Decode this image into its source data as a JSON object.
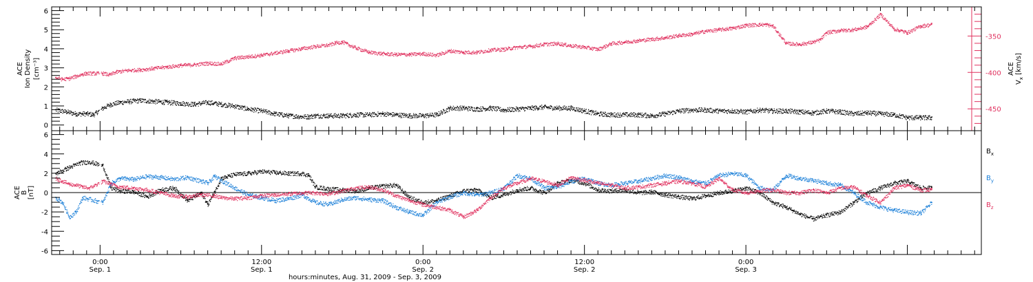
{
  "chart_data": [
    {
      "type": "scatter",
      "panel": "top",
      "left_axis": {
        "label_lines": [
          "ACE",
          "Ion Density"
        ],
        "unit": "[cm⁻³]",
        "ylim": [
          -0.3,
          6.2
        ],
        "ticks": [
          0,
          1,
          2,
          3,
          4,
          5,
          6
        ],
        "tick_labels": [
          "0",
          "1",
          "2",
          "3",
          "4",
          "5",
          "6"
        ]
      },
      "right_axis": {
        "label_top": "ACE",
        "label_var": "V",
        "label_sub": "x",
        "label_unit": "[km/s]",
        "ylim": [
          -480,
          -310
        ],
        "ticks": [
          -350,
          -400,
          -450
        ],
        "tick_labels": [
          "-350",
          "-400",
          "-450"
        ],
        "color": "#e0305e"
      },
      "grid": false,
      "series": [
        {
          "color": "#000000",
          "axis": "left",
          "x": [
            -3.3,
            -2.5,
            -1.8,
            -1.0,
            -0.5,
            0.2,
            0.8,
            1.5,
            2.2,
            3.0,
            4.0,
            5.0,
            6.0,
            7.0,
            8.0,
            9.0,
            10.0,
            11.0,
            12.0,
            13.0,
            14.0,
            15.0,
            15.5,
            16.0,
            17.0,
            18.0,
            19.0,
            20.0,
            21.0,
            22.0,
            23.0,
            24.0,
            25.0,
            26.0,
            27.0,
            28.0,
            29.0,
            30.0,
            31.0,
            32.0,
            33.0,
            34.0,
            35.0,
            36.0,
            37.0,
            38.0,
            39.0,
            40.0,
            41.0,
            42.0,
            43.0,
            44.0,
            45.0,
            46.0,
            47.0,
            48.0,
            49.0,
            50.0,
            51.0,
            52.0,
            53.0,
            54.0,
            55.0,
            56.0,
            57.0,
            58.0,
            59.0,
            60.0,
            61.0,
            61.8
          ],
          "y": [
            0.8,
            0.7,
            0.6,
            0.6,
            0.55,
            0.9,
            1.1,
            1.2,
            1.25,
            1.3,
            1.25,
            1.2,
            1.15,
            1.1,
            1.2,
            1.1,
            1.0,
            0.85,
            0.75,
            0.6,
            0.5,
            0.45,
            0.45,
            0.5,
            0.5,
            0.5,
            0.55,
            0.55,
            0.6,
            0.55,
            0.5,
            0.5,
            0.55,
            0.9,
            0.9,
            0.85,
            0.9,
            0.8,
            0.85,
            0.9,
            0.95,
            0.9,
            0.9,
            0.75,
            0.6,
            0.55,
            0.55,
            0.55,
            0.5,
            0.6,
            0.75,
            0.8,
            0.8,
            0.75,
            0.75,
            0.7,
            0.8,
            0.75,
            0.75,
            0.7,
            0.65,
            0.75,
            0.7,
            0.6,
            0.65,
            0.6,
            0.55,
            0.4,
            0.4,
            0.4
          ]
        },
        {
          "color": "#e0305e",
          "axis": "right",
          "x": [
            -3.3,
            -2.8,
            -2.3,
            -1.8,
            -1.3,
            -1.0,
            -0.6,
            0.2,
            0.7,
            1.2,
            2.0,
            3.0,
            4.0,
            5.0,
            6.0,
            7.0,
            8.0,
            9.0,
            10.0,
            11.0,
            12.0,
            13.0,
            14.0,
            15.0,
            16.0,
            17.0,
            17.5,
            18.0,
            19.0,
            20.0,
            21.0,
            22.0,
            23.0,
            24.0,
            25.0,
            26.0,
            27.0,
            28.0,
            29.0,
            30.0,
            31.0,
            32.0,
            33.0,
            34.0,
            35.0,
            36.0,
            37.0,
            38.0,
            39.0,
            40.0,
            41.0,
            42.0,
            43.0,
            44.0,
            45.0,
            46.0,
            47.0,
            48.0,
            49.0,
            49.5,
            50.0,
            51.0,
            52.0,
            53.0,
            53.5,
            54.0,
            55.0,
            56.0,
            57.0,
            58.0,
            59.0,
            60.0,
            61.0,
            61.8
          ],
          "y": [
            -407,
            -409,
            -408,
            -405,
            -402,
            -401,
            -401,
            -401,
            -403,
            -399,
            -397,
            -396,
            -394,
            -392,
            -390,
            -389,
            -387,
            -388,
            -380,
            -378,
            -376,
            -373,
            -370,
            -367,
            -364,
            -362,
            -359,
            -358,
            -366,
            -372,
            -374,
            -375,
            -375,
            -374,
            -376,
            -370,
            -372,
            -372,
            -369,
            -368,
            -365,
            -364,
            -361,
            -360,
            -363,
            -365,
            -368,
            -360,
            -358,
            -356,
            -354,
            -352,
            -349,
            -347,
            -343,
            -341,
            -339,
            -335,
            -334,
            -334,
            -336,
            -360,
            -361,
            -358,
            -355,
            -345,
            -342,
            -341,
            -337,
            -320,
            -340,
            -345,
            -336,
            -334
          ]
        }
      ]
    },
    {
      "type": "scatter",
      "panel": "bottom",
      "left_axis": {
        "label_lines": [
          "ACE",
          "B"
        ],
        "unit": "[nT]",
        "ylim": [
          -6.4,
          6.4
        ],
        "ticks": [
          -6,
          -4,
          -2,
          0,
          2,
          4,
          6
        ],
        "tick_labels": [
          "-6",
          "-4",
          "-2",
          "0",
          "2",
          "4",
          "6"
        ]
      },
      "legend": [
        {
          "var": "B",
          "sub": "x",
          "color": "#000000"
        },
        {
          "var": "B",
          "sub": "y",
          "color": "#1a7fd8"
        },
        {
          "var": "B",
          "sub": "z",
          "color": "#e0305e"
        }
      ],
      "zero_line": true,
      "grid": false,
      "series": [
        {
          "color": "#000000",
          "x": [
            -3.3,
            -2.5,
            -1.5,
            -0.8,
            0.2,
            0.8,
            1.5,
            2.5,
            3.5,
            4.5,
            5.5,
            6.5,
            7.5,
            8.0,
            8.5,
            9.0,
            10.0,
            11.0,
            12.0,
            13.0,
            14.0,
            15.0,
            15.5,
            16.0,
            17.0,
            18.0,
            19.0,
            20.0,
            21.0,
            22.0,
            23.0,
            24.0,
            25.0,
            26.0,
            27.0,
            28.0,
            29.0,
            30.0,
            31.0,
            32.0,
            33.0,
            34.0,
            35.0,
            36.0,
            37.0,
            38.0,
            39.0,
            40.0,
            41.0,
            42.0,
            43.0,
            44.0,
            45.0,
            46.0,
            47.0,
            48.0,
            49.0,
            50.0,
            51.0,
            52.0,
            53.0,
            54.0,
            55.0,
            56.0,
            57.0,
            58.0,
            59.0,
            60.0,
            61.0,
            61.8
          ],
          "y": [
            2.0,
            2.5,
            3.1,
            3.2,
            2.8,
            0.5,
            0.2,
            0.1,
            -0.4,
            0.3,
            0.5,
            -0.8,
            0.0,
            -1.2,
            0.1,
            1.5,
            1.9,
            2.0,
            2.2,
            2.1,
            2.0,
            2.0,
            1.8,
            0.6,
            0.4,
            0.3,
            0.2,
            0.5,
            0.7,
            0.8,
            -0.5,
            -1.0,
            -0.8,
            -0.3,
            0.2,
            0.3,
            -0.5,
            -0.2,
            0.3,
            0.5,
            0.0,
            1.0,
            1.3,
            1.0,
            0.3,
            0.2,
            0.3,
            0.0,
            0.1,
            -0.2,
            -0.4,
            -0.6,
            -0.3,
            0.0,
            0.2,
            0.5,
            0.0,
            -1.0,
            -1.5,
            -2.2,
            -2.7,
            -2.3,
            -2.0,
            -1.0,
            0.0,
            0.5,
            1.0,
            1.2,
            0.5,
            0.5
          ]
        },
        {
          "color": "#1a7fd8",
          "x": [
            -3.3,
            -2.8,
            -2.3,
            -1.8,
            -1.3,
            0.2,
            0.8,
            1.5,
            2.5,
            3.5,
            4.5,
            5.5,
            6.5,
            7.5,
            8.0,
            8.5,
            9.0,
            10.0,
            11.0,
            12.0,
            13.0,
            14.0,
            15.0,
            16.0,
            17.0,
            18.0,
            19.0,
            20.0,
            21.0,
            22.0,
            23.0,
            24.0,
            25.0,
            26.0,
            27.0,
            28.0,
            29.0,
            30.0,
            31.0,
            32.0,
            33.0,
            34.0,
            35.0,
            36.0,
            37.0,
            38.0,
            39.0,
            40.0,
            41.0,
            42.0,
            43.0,
            44.0,
            45.0,
            46.0,
            47.0,
            48.0,
            49.0,
            50.0,
            51.0,
            52.0,
            53.0,
            54.0,
            55.0,
            56.0,
            57.0,
            58.0,
            59.0,
            60.0,
            61.0,
            61.8
          ],
          "y": [
            -0.5,
            -1.0,
            -2.5,
            -2.0,
            -0.5,
            -1.0,
            1.0,
            1.5,
            1.4,
            1.7,
            1.6,
            1.4,
            1.6,
            1.2,
            1.0,
            1.7,
            1.3,
            0.5,
            -0.2,
            -0.5,
            -0.8,
            -0.6,
            -0.2,
            -1.0,
            -1.2,
            -0.7,
            -0.5,
            -0.7,
            -0.8,
            -1.5,
            -2.0,
            -2.3,
            -1.0,
            -0.4,
            0.0,
            -0.2,
            0.0,
            0.5,
            1.8,
            1.5,
            0.5,
            0.6,
            1.2,
            1.5,
            1.0,
            0.8,
            1.0,
            1.2,
            1.5,
            1.8,
            1.6,
            1.2,
            1.0,
            1.8,
            2.0,
            1.8,
            0.5,
            0.3,
            1.8,
            1.5,
            1.3,
            1.0,
            0.8,
            0.0,
            -1.0,
            -1.5,
            -1.8,
            -2.0,
            -2.1,
            -1.0
          ]
        },
        {
          "color": "#e0305e",
          "x": [
            -3.3,
            -2.8,
            -2.3,
            -1.8,
            -1.3,
            -0.8,
            0.2,
            0.8,
            1.5,
            2.5,
            3.5,
            4.5,
            5.5,
            6.5,
            7.5,
            8.5,
            9.0,
            10.0,
            11.0,
            12.0,
            13.0,
            14.0,
            15.0,
            16.0,
            17.0,
            18.0,
            19.0,
            20.0,
            21.0,
            22.0,
            23.0,
            24.0,
            25.0,
            26.0,
            27.0,
            28.0,
            29.0,
            30.0,
            31.0,
            32.0,
            33.0,
            34.0,
            35.0,
            36.0,
            37.0,
            38.0,
            39.0,
            40.0,
            41.0,
            42.0,
            43.0,
            44.0,
            45.0,
            46.0,
            47.0,
            48.0,
            49.0,
            50.0,
            51.0,
            52.0,
            53.0,
            54.0,
            55.0,
            56.0,
            57.0,
            58.0,
            59.0,
            60.0,
            61.0,
            61.8
          ],
          "y": [
            1.5,
            1.2,
            0.9,
            0.8,
            0.6,
            0.5,
            1.2,
            0.9,
            0.6,
            0.5,
            0.3,
            0.0,
            -0.3,
            -0.4,
            -0.2,
            -0.3,
            -0.5,
            -0.6,
            -0.5,
            -0.3,
            -0.2,
            -0.1,
            0.0,
            0.0,
            -0.1,
            0.2,
            0.5,
            0.6,
            0.3,
            -0.3,
            -0.8,
            -1.2,
            -1.5,
            -1.8,
            -2.5,
            -1.8,
            -0.5,
            0.5,
            1.0,
            1.5,
            1.2,
            0.8,
            1.6,
            1.3,
            1.0,
            0.8,
            0.5,
            0.6,
            0.8,
            1.0,
            1.2,
            1.0,
            0.6,
            1.5,
            0.3,
            0.0,
            0.2,
            0.3,
            0.0,
            0.0,
            0.3,
            0.0,
            0.5,
            0.6,
            -0.3,
            -1.0,
            0.5,
            0.8,
            0.3,
            0.3
          ]
        }
      ]
    }
  ],
  "time_axis": {
    "xlim": [
      -3.6,
      65.5
    ],
    "major_ticks": [
      {
        "x": 0,
        "time": "0:00",
        "date": "Sep. 1"
      },
      {
        "x": 12,
        "time": "12:00",
        "date": "Sep. 1"
      },
      {
        "x": 24,
        "time": "0:00",
        "date": "Sep. 2"
      },
      {
        "x": 36,
        "time": "12:00",
        "date": "Sep. 2"
      },
      {
        "x": 48,
        "time": "0:00",
        "date": "Sep. 3"
      }
    ],
    "title": "hours:minutes, Aug. 31, 2009 - Sep.  3, 2009"
  }
}
